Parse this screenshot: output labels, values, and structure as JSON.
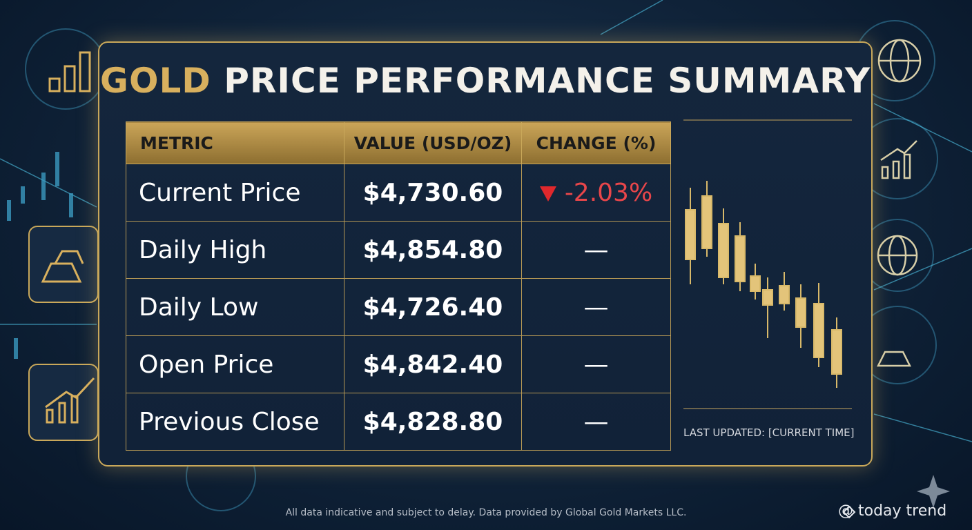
{
  "title": {
    "accent": "GOLD",
    "text": "PRICE PERFORMANCE SUMMARY"
  },
  "table": {
    "columns": [
      "METRIC",
      "VALUE (USD/OZ)",
      "CHANGE (%)"
    ],
    "rows": [
      [
        "Current Price",
        "$4,730.60",
        "-2.03%"
      ],
      [
        "Daily High",
        "$4,854.80",
        "—"
      ],
      [
        "Daily Low",
        "$4,726.40",
        "—"
      ],
      [
        "Open Price",
        "$4,842.40",
        "—"
      ],
      [
        "Previous Close",
        "$4,828.80",
        "—"
      ]
    ]
  },
  "last_updated": "LAST UPDATED: [CURRENT TIME]",
  "disclaimer": "All data indicative and subject to delay. Data provided by Global Gold Markets LLC.",
  "watermark": "@ today trend"
}
